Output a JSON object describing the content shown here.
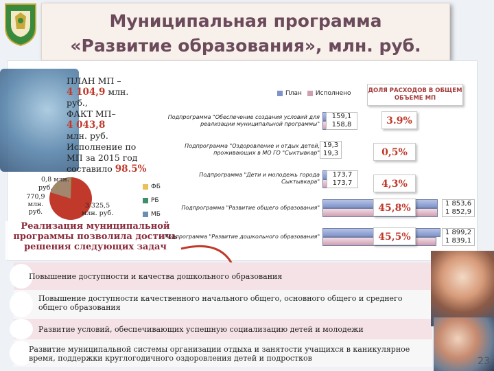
{
  "title": {
    "line1": "Муниципальная программа",
    "line2": "«Развитие образования», млн. руб."
  },
  "plan_fact": {
    "l1": "ПЛАН МП –",
    "l2": "4 104,9",
    "l2b": " млн.",
    "l3": "руб.,",
    "l4": "ФАКТ  МП–",
    "l5": "4 043,8",
    "l6": "млн. руб.",
    "l7": "Исполнение  по",
    "l8": "МП за 2015 год",
    "l9": "составило ",
    "l9b": "98,5%"
  },
  "pie": {
    "label_fb_a": "0,8 млн.",
    "label_fb_b": "руб.",
    "label_fb_c": "7",
    "label_rb_a": "770,9",
    "label_rb_b": "млн. руб.",
    "label_mb_a": "3 325,5",
    "label_mb_b": "млн. руб.",
    "legend": [
      {
        "label": "ФБ",
        "color": "#e8c15a"
      },
      {
        "label": "РБ",
        "color": "#3e8f6a"
      },
      {
        "label": "МБ",
        "color": "#6a8fb7"
      }
    ],
    "slice_colors": {
      "mb": "#c0392b",
      "rb": "#a2866d",
      "fb": "#7d9b2c"
    }
  },
  "legend_bars": {
    "plan": "План",
    "fact": "Исполнено"
  },
  "dolya_title": "ДОЛЯ РАСХОДОВ В ОБЩЕМ ОБЪЕМЕ МП",
  "subprograms": [
    {
      "name": "Подпрограмма \"Обеспечение создания условий для реализации муниципальной программы\"",
      "plan": "159,1",
      "fact": "158,8",
      "share": "3.9%"
    },
    {
      "name": "Подпрограмма \"Оздоровление и отдых детей, проживающих в МО ГО \"Сыктывкар\"",
      "plan": "19,3",
      "fact": "19,3",
      "share": "0,5%"
    },
    {
      "name": "Подпрограмма \"Дети и молодежь города Сыктывкара\"",
      "plan": "173,7",
      "fact": "173,7",
      "share": "4,3%"
    },
    {
      "name": "Подпрограмма \"Развитие общего образования\"",
      "plan": "1 853,6",
      "fact": "1 852,9",
      "share": "45,8%"
    },
    {
      "name": "Подпрограмма \"Развитие дошкольного образования\"",
      "plan": "1 899,2",
      "fact": "1 839,1",
      "share": "45,5%"
    }
  ],
  "realiz": {
    "l1": "Реализация муниципальной",
    "l2": "программы позволила достичь",
    "l3": "решения следующих задач"
  },
  "tasks": [
    "Повышение доступности и качества дошкольного образования",
    "Повышение доступности качественного начального общего, основного общего и среднего общего образования",
    "Развитие условий, обеспечивающих успешную социализацию детей и молодежи",
    "Развитие муниципальной системы организации отдыха и занятости учащихся в каникулярное время, поддержки круглогодичного оздоровления детей и подростков"
  ],
  "page_number": "23",
  "chart_data": {
    "type": "bar",
    "orientation": "horizontal",
    "categories": [
      "Подпрограмма \"Обеспечение создания условий для реализации муниципальной программы\"",
      "Подпрограмма \"Оздоровление и отдых детей, проживающих в МО ГО \"Сыктывкар\"",
      "Подпрограмма \"Дети и молодежь города Сыктывкара\"",
      "Подпрограмма \"Развитие общего образования\"",
      "Подпрограмма \"Развитие дошкольного образования\""
    ],
    "series": [
      {
        "name": "План",
        "values": [
          159.1,
          19.3,
          173.7,
          1853.6,
          1899.2
        ]
      },
      {
        "name": "Исполнено",
        "values": [
          158.8,
          19.3,
          173.7,
          1852.9,
          1839.1
        ]
      }
    ],
    "xlim": [
      0,
      1900
    ],
    "legend": "top"
  }
}
